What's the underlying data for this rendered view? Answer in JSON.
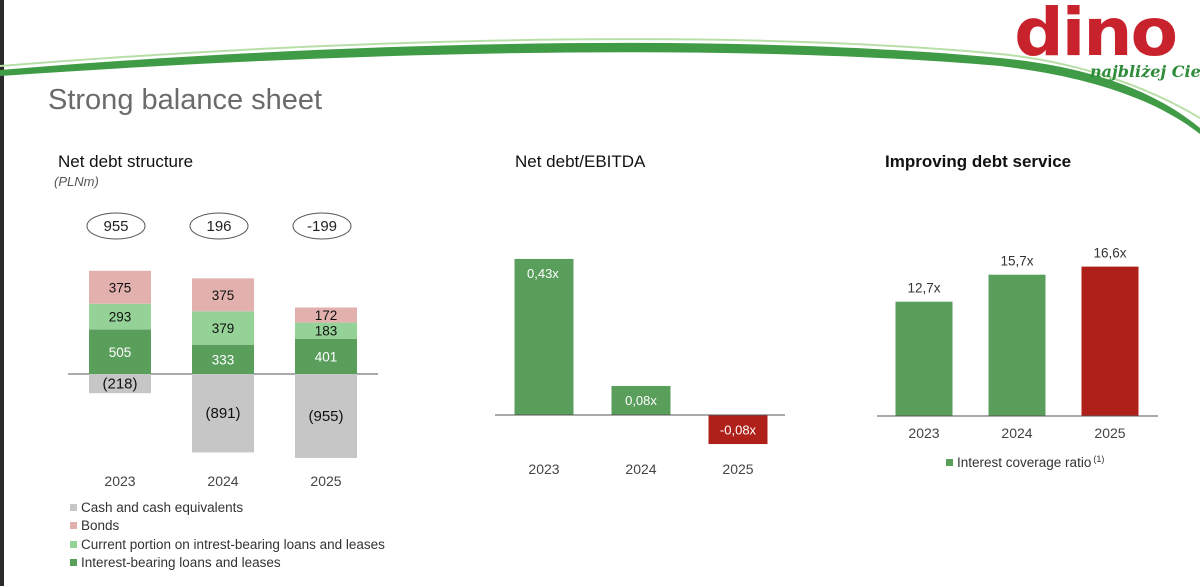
{
  "page": {
    "title": "Strong balance sheet",
    "logo": {
      "word": "dino",
      "tagline": "najbliżej Ciebie"
    },
    "colors": {
      "dark_green": "#5a9e5c",
      "light_green": "#95d297",
      "pink": "#e2b1ae",
      "gray": "#c6c6c6",
      "red": "#b0201a",
      "brand_red": "#c8232c",
      "brand_green": "#2e8b3a"
    }
  },
  "sections": {
    "net_debt": {
      "title": "Net debt structure",
      "unit": "(PLNm)"
    },
    "ratio": {
      "title": "Net debt/EBITDA"
    },
    "service": {
      "title": "Improving debt service"
    }
  },
  "chart_data": [
    {
      "id": "net_debt_structure",
      "type": "bar",
      "stacked": true,
      "title": "Net debt structure",
      "unit": "(PLNm)",
      "categories": [
        "2023",
        "2024",
        "2025"
      ],
      "totals": [
        "955",
        "196",
        "-199"
      ],
      "series": [
        {
          "name": "Cash and cash equivalents",
          "color": "#c6c6c6",
          "values": [
            -218,
            -891,
            -955
          ],
          "labels": [
            "(218)",
            "(891)",
            "(955)"
          ]
        },
        {
          "name": "Interest-bearing loans and leases",
          "color": "#5a9e5c",
          "values": [
            505,
            333,
            401
          ],
          "labels": [
            "505",
            "333",
            "401"
          ]
        },
        {
          "name": "Current portion on intrest-bearing loans and leases",
          "color": "#95d297",
          "values": [
            293,
            379,
            183
          ],
          "labels": [
            "293",
            "379",
            "183"
          ]
        },
        {
          "name": "Bonds",
          "color": "#e2b1ae",
          "values": [
            375,
            375,
            172
          ],
          "labels": [
            "375",
            "375",
            "172"
          ]
        }
      ],
      "legend_order": [
        "Cash and cash equivalents",
        "Bonds",
        "Current portion on intrest-bearing loans and leases",
        "Interest-bearing loans and leases"
      ],
      "legend": "bottom"
    },
    {
      "id": "net_debt_ebitda",
      "type": "bar",
      "title": "Net debt/EBITDA",
      "categories": [
        "2023",
        "2024",
        "2025"
      ],
      "values": [
        0.43,
        0.08,
        -0.08
      ],
      "labels": [
        "0,43x",
        "0,08x",
        "-0,08x"
      ],
      "colors": [
        "#5a9e5c",
        "#5a9e5c",
        "#b0201a"
      ]
    },
    {
      "id": "debt_service",
      "type": "bar",
      "title": "Improving debt service",
      "categories": [
        "2023",
        "2024",
        "2025"
      ],
      "values": [
        12.7,
        15.7,
        16.6
      ],
      "labels": [
        "12,7x",
        "15,7x",
        "16,6x"
      ],
      "colors": [
        "#5a9e5c",
        "#5a9e5c",
        "#b0201a"
      ],
      "legend": {
        "label": "Interest coverage ratio",
        "footnote": "(1)",
        "color": "#5a9e5c"
      }
    }
  ]
}
